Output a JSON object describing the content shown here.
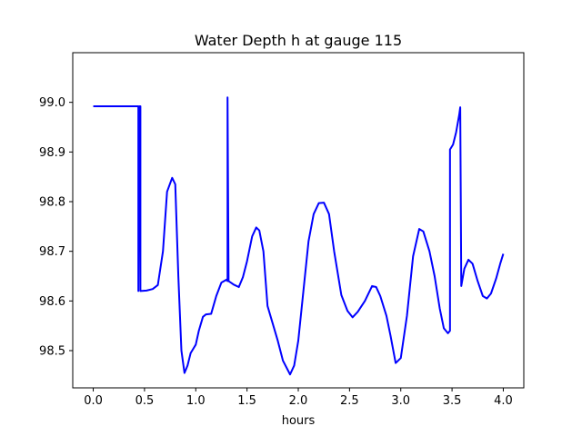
{
  "chart_data": {
    "type": "line",
    "title": "Water Depth h at gauge 115",
    "xlabel": "hours",
    "ylabel": "",
    "xlim": [
      -0.2,
      4.2
    ],
    "ylim": [
      98.425,
      99.1
    ],
    "xticks": [
      0.0,
      0.5,
      1.0,
      1.5,
      2.0,
      2.5,
      3.0,
      3.5,
      4.0
    ],
    "xtick_labels": [
      "0.0",
      "0.5",
      "1.0",
      "1.5",
      "2.0",
      "2.5",
      "3.0",
      "3.5",
      "4.0"
    ],
    "yticks": [
      98.5,
      98.6,
      98.7,
      98.8,
      98.9,
      99.0
    ],
    "ytick_labels": [
      "98.5",
      "98.6",
      "98.7",
      "98.8",
      "98.9",
      "99.0"
    ],
    "grid": false,
    "legend": "none",
    "series": [
      {
        "color": "#0000ff",
        "points": [
          [
            0.0,
            98.992
          ],
          [
            0.44,
            98.992
          ],
          [
            0.44,
            98.62
          ],
          [
            0.45,
            98.992
          ],
          [
            0.46,
            98.992
          ],
          [
            0.46,
            98.62
          ],
          [
            0.52,
            98.621
          ],
          [
            0.58,
            98.624
          ],
          [
            0.63,
            98.632
          ],
          [
            0.68,
            98.7
          ],
          [
            0.72,
            98.82
          ],
          [
            0.77,
            98.848
          ],
          [
            0.8,
            98.835
          ],
          [
            0.83,
            98.65
          ],
          [
            0.86,
            98.5
          ],
          [
            0.89,
            98.455
          ],
          [
            0.92,
            98.47
          ],
          [
            0.95,
            98.495
          ],
          [
            1.0,
            98.512
          ],
          [
            1.03,
            98.54
          ],
          [
            1.07,
            98.568
          ],
          [
            1.1,
            98.573
          ],
          [
            1.15,
            98.574
          ],
          [
            1.2,
            98.61
          ],
          [
            1.25,
            98.637
          ],
          [
            1.3,
            98.643
          ],
          [
            1.31,
            98.64
          ],
          [
            1.31,
            99.01
          ],
          [
            1.32,
            98.64
          ],
          [
            1.37,
            98.633
          ],
          [
            1.42,
            98.628
          ],
          [
            1.46,
            98.648
          ],
          [
            1.5,
            98.68
          ],
          [
            1.55,
            98.73
          ],
          [
            1.59,
            98.748
          ],
          [
            1.62,
            98.742
          ],
          [
            1.66,
            98.7
          ],
          [
            1.7,
            98.59
          ],
          [
            1.75,
            98.555
          ],
          [
            1.8,
            98.52
          ],
          [
            1.85,
            98.48
          ],
          [
            1.92,
            98.452
          ],
          [
            1.96,
            98.47
          ],
          [
            2.0,
            98.52
          ],
          [
            2.05,
            98.62
          ],
          [
            2.1,
            98.72
          ],
          [
            2.15,
            98.775
          ],
          [
            2.2,
            98.797
          ],
          [
            2.25,
            98.798
          ],
          [
            2.3,
            98.775
          ],
          [
            2.35,
            98.7
          ],
          [
            2.42,
            98.612
          ],
          [
            2.48,
            98.58
          ],
          [
            2.53,
            98.567
          ],
          [
            2.58,
            98.578
          ],
          [
            2.65,
            98.6
          ],
          [
            2.72,
            98.63
          ],
          [
            2.76,
            98.628
          ],
          [
            2.8,
            98.61
          ],
          [
            2.86,
            98.57
          ],
          [
            2.9,
            98.53
          ],
          [
            2.95,
            98.475
          ],
          [
            3.0,
            98.485
          ],
          [
            3.06,
            98.57
          ],
          [
            3.12,
            98.69
          ],
          [
            3.18,
            98.745
          ],
          [
            3.22,
            98.74
          ],
          [
            3.28,
            98.7
          ],
          [
            3.33,
            98.65
          ],
          [
            3.38,
            98.585
          ],
          [
            3.42,
            98.545
          ],
          [
            3.46,
            98.535
          ],
          [
            3.48,
            98.54
          ],
          [
            3.48,
            98.905
          ],
          [
            3.51,
            98.915
          ],
          [
            3.54,
            98.94
          ],
          [
            3.57,
            98.975
          ],
          [
            3.58,
            98.99
          ],
          [
            3.59,
            98.63
          ],
          [
            3.62,
            98.665
          ],
          [
            3.66,
            98.683
          ],
          [
            3.7,
            98.675
          ],
          [
            3.75,
            98.64
          ],
          [
            3.8,
            98.61
          ],
          [
            3.84,
            98.605
          ],
          [
            3.88,
            98.615
          ],
          [
            3.93,
            98.645
          ],
          [
            3.97,
            98.675
          ],
          [
            4.0,
            98.695
          ]
        ]
      }
    ]
  }
}
